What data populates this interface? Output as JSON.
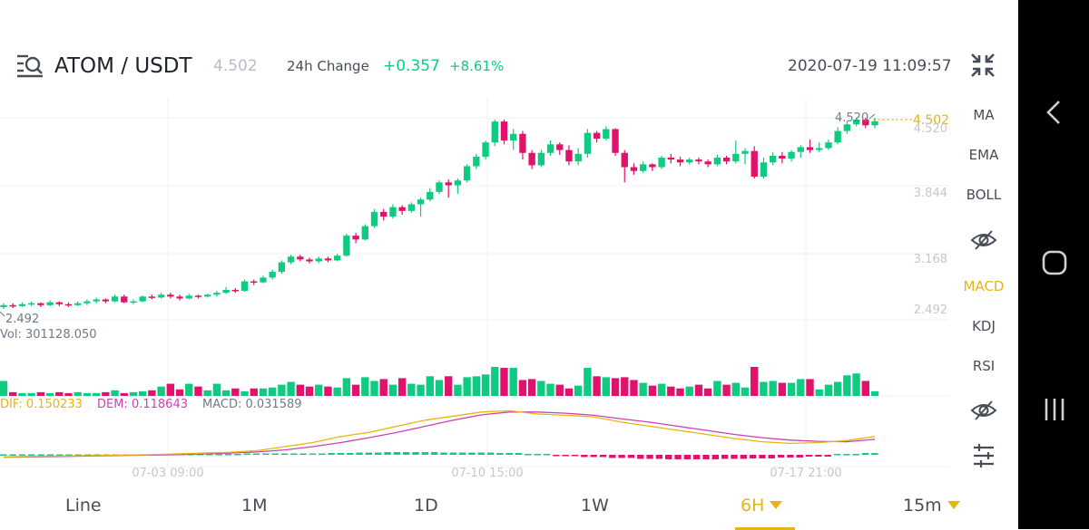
{
  "header": {
    "pair": "ATOM / USDT",
    "last_price": "4.502",
    "change_label": "24h Change",
    "change_abs": "+0.357",
    "change_pct": "+8.61%",
    "timestamp": "2020-07-19 11:09:57"
  },
  "colors": {
    "up": "#0ecb81",
    "down": "#e0126b",
    "accent": "#e6b511",
    "dif": "#e6b511",
    "dem": "#cf3fb2"
  },
  "price_panel": {
    "axis_labels": [
      "4.520",
      "3.844",
      "3.168",
      "2.492"
    ],
    "high_label": "4.520",
    "low_label": "2.492",
    "current_price_label": "4.502"
  },
  "volume_panel": {
    "label": "Vol: 301128.050"
  },
  "macd_panel": {
    "dif_label": "DIF: 0.150233",
    "dem_label": "DEM: 0.118643",
    "macd_label": "MACD: 0.031589"
  },
  "x_axis_labels": [
    "07-03 09:00",
    "07-10 15:00",
    "07-17 21:00"
  ],
  "sidebar": {
    "items": [
      "MA",
      "EMA",
      "BOLL",
      "MACD",
      "KDJ",
      "RSI"
    ],
    "active": "MACD"
  },
  "timeframes": [
    {
      "label": "Line",
      "active": false,
      "dropdown": false
    },
    {
      "label": "1M",
      "active": false,
      "dropdown": false
    },
    {
      "label": "1D",
      "active": false,
      "dropdown": false
    },
    {
      "label": "1W",
      "active": false,
      "dropdown": false
    },
    {
      "label": "6H",
      "active": true,
      "dropdown": true
    },
    {
      "label": "15m",
      "active": false,
      "dropdown": true
    }
  ],
  "icons": {
    "pair_icon": "list-search-icon",
    "collapse_icon": "collapse-arrows-icon",
    "main_eye_icon": "eye-slash-icon",
    "sub_eye_icon": "eye-slash-icon",
    "settings_icon": "sliders-icon",
    "nav_back": "chevron-left-icon",
    "nav_home": "home-icon",
    "nav_recents": "recents-icon"
  },
  "chart_data": {
    "type": "candlestick",
    "interval": "6H",
    "x_labels": [
      "07-03 09:00",
      "07-10 15:00",
      "07-17 21:00"
    ],
    "price_ylim": [
      2.4,
      4.6
    ],
    "price_ticks": [
      4.52,
      3.844,
      3.168,
      2.492
    ],
    "candles": [
      [
        2.55,
        2.57,
        2.53,
        2.59
      ],
      [
        2.57,
        2.56,
        2.54,
        2.59
      ],
      [
        2.56,
        2.58,
        2.55,
        2.6
      ],
      [
        2.58,
        2.59,
        2.56,
        2.61
      ],
      [
        2.59,
        2.57,
        2.55,
        2.6
      ],
      [
        2.57,
        2.6,
        2.56,
        2.62
      ],
      [
        2.6,
        2.58,
        2.56,
        2.61
      ],
      [
        2.58,
        2.57,
        2.55,
        2.6
      ],
      [
        2.57,
        2.59,
        2.56,
        2.61
      ],
      [
        2.59,
        2.61,
        2.57,
        2.63
      ],
      [
        2.61,
        2.63,
        2.59,
        2.65
      ],
      [
        2.63,
        2.61,
        2.59,
        2.64
      ],
      [
        2.61,
        2.66,
        2.6,
        2.68
      ],
      [
        2.66,
        2.6,
        2.59,
        2.68
      ],
      [
        2.6,
        2.61,
        2.58,
        2.63
      ],
      [
        2.61,
        2.66,
        2.6,
        2.67
      ],
      [
        2.66,
        2.65,
        2.63,
        2.68
      ],
      [
        2.65,
        2.68,
        2.64,
        2.7
      ],
      [
        2.68,
        2.66,
        2.64,
        2.7
      ],
      [
        2.66,
        2.64,
        2.62,
        2.68
      ],
      [
        2.64,
        2.67,
        2.63,
        2.69
      ],
      [
        2.67,
        2.66,
        2.64,
        2.68
      ],
      [
        2.66,
        2.68,
        2.65,
        2.69
      ],
      [
        2.68,
        2.7,
        2.66,
        2.72
      ],
      [
        2.7,
        2.73,
        2.69,
        2.76
      ],
      [
        2.73,
        2.72,
        2.7,
        2.75
      ],
      [
        2.72,
        2.82,
        2.71,
        2.84
      ],
      [
        2.82,
        2.81,
        2.78,
        2.84
      ],
      [
        2.81,
        2.86,
        2.8,
        2.88
      ],
      [
        2.86,
        2.92,
        2.84,
        2.94
      ],
      [
        2.92,
        3.02,
        2.9,
        3.04
      ],
      [
        3.02,
        3.08,
        3.0,
        3.1
      ],
      [
        3.08,
        3.05,
        3.03,
        3.1
      ],
      [
        3.05,
        3.03,
        3.01,
        3.07
      ],
      [
        3.03,
        3.06,
        3.01,
        3.08
      ],
      [
        3.06,
        3.04,
        3.02,
        3.08
      ],
      [
        3.04,
        3.09,
        3.03,
        3.11
      ],
      [
        3.09,
        3.3,
        3.08,
        3.32
      ],
      [
        3.3,
        3.26,
        3.22,
        3.33
      ],
      [
        3.26,
        3.4,
        3.25,
        3.42
      ],
      [
        3.4,
        3.55,
        3.38,
        3.58
      ],
      [
        3.55,
        3.5,
        3.46,
        3.58
      ],
      [
        3.5,
        3.6,
        3.48,
        3.63
      ],
      [
        3.6,
        3.56,
        3.52,
        3.62
      ],
      [
        3.56,
        3.63,
        3.54,
        3.65
      ],
      [
        3.63,
        3.68,
        3.5,
        3.7
      ],
      [
        3.68,
        3.76,
        3.66,
        3.8
      ],
      [
        3.76,
        3.86,
        3.74,
        3.88
      ],
      [
        3.86,
        3.83,
        3.7,
        3.89
      ],
      [
        3.83,
        3.88,
        3.74,
        3.9
      ],
      [
        3.88,
        4.03,
        3.86,
        4.05
      ],
      [
        4.03,
        4.13,
        4.0,
        4.16
      ],
      [
        4.13,
        4.28,
        4.1,
        4.3
      ],
      [
        4.28,
        4.5,
        4.24,
        4.52
      ],
      [
        4.5,
        4.3,
        4.26,
        4.52
      ],
      [
        4.3,
        4.37,
        4.2,
        4.42
      ],
      [
        4.37,
        4.17,
        4.1,
        4.4
      ],
      [
        4.17,
        4.04,
        4.0,
        4.2
      ],
      [
        4.04,
        4.17,
        4.02,
        4.2
      ],
      [
        4.17,
        4.26,
        4.14,
        4.3
      ],
      [
        4.26,
        4.2,
        4.15,
        4.28
      ],
      [
        4.2,
        4.08,
        4.04,
        4.25
      ],
      [
        4.08,
        4.16,
        4.04,
        4.22
      ],
      [
        4.16,
        4.38,
        4.12,
        4.42
      ],
      [
        4.38,
        4.32,
        4.28,
        4.4
      ],
      [
        4.32,
        4.42,
        4.3,
        4.45
      ],
      [
        4.42,
        4.17,
        4.14,
        4.43
      ],
      [
        4.17,
        4.02,
        3.86,
        4.2
      ],
      [
        4.02,
        3.98,
        3.94,
        4.06
      ],
      [
        3.98,
        4.05,
        3.96,
        4.08
      ],
      [
        4.05,
        4.02,
        3.98,
        4.06
      ],
      [
        4.02,
        4.12,
        4.0,
        4.14
      ],
      [
        4.12,
        4.1,
        4.06,
        4.16
      ],
      [
        4.1,
        4.07,
        4.03,
        4.13
      ],
      [
        4.07,
        4.1,
        4.05,
        4.12
      ],
      [
        4.1,
        4.08,
        4.05,
        4.12
      ],
      [
        4.08,
        4.05,
        4.02,
        4.1
      ],
      [
        4.05,
        4.12,
        4.03,
        4.15
      ],
      [
        4.12,
        4.08,
        4.05,
        4.14
      ],
      [
        4.08,
        4.16,
        4.06,
        4.3
      ],
      [
        4.16,
        4.19,
        4.05,
        4.22
      ],
      [
        4.19,
        3.92,
        3.9,
        4.24
      ],
      [
        3.92,
        4.07,
        3.9,
        4.12
      ],
      [
        4.07,
        4.14,
        4.04,
        4.18
      ],
      [
        4.14,
        4.11,
        4.06,
        4.18
      ],
      [
        4.11,
        4.18,
        4.08,
        4.2
      ],
      [
        4.18,
        4.23,
        4.12,
        4.25
      ],
      [
        4.23,
        4.2,
        4.17,
        4.31
      ],
      [
        4.2,
        4.22,
        4.18,
        4.28
      ],
      [
        4.22,
        4.28,
        4.2,
        4.31
      ],
      [
        4.28,
        4.4,
        4.26,
        4.44
      ],
      [
        4.4,
        4.47,
        4.37,
        4.5
      ],
      [
        4.47,
        4.52,
        4.45,
        4.54
      ],
      [
        4.52,
        4.46,
        4.43,
        4.54
      ],
      [
        4.46,
        4.502,
        4.43,
        4.54
      ]
    ],
    "volume_note": "relative volume bars, 0-100 scale",
    "volume": [
      16,
      4,
      3,
      3,
      4,
      3,
      4,
      3,
      4,
      3,
      3,
      4,
      6,
      3,
      4,
      5,
      6,
      10,
      13,
      7,
      13,
      10,
      6,
      13,
      6,
      8,
      5,
      8,
      8,
      9,
      12,
      15,
      12,
      10,
      12,
      10,
      9,
      19,
      12,
      20,
      16,
      18,
      12,
      19,
      13,
      12,
      21,
      17,
      21,
      12,
      20,
      21,
      23,
      31,
      30,
      30,
      17,
      18,
      16,
      13,
      12,
      8,
      11,
      30,
      21,
      20,
      19,
      20,
      17,
      14,
      11,
      13,
      10,
      8,
      10,
      12,
      8,
      16,
      12,
      14,
      9,
      31,
      15,
      16,
      14,
      14,
      18,
      18,
      7,
      12,
      15,
      22,
      24,
      16,
      5
    ],
    "macd": {
      "dif_series": [
        -0.05,
        -0.04,
        -0.03,
        -0.02,
        -0.01,
        0,
        0.02,
        0.04,
        0.06,
        0.1,
        0.2,
        0.3,
        0.45,
        0.55,
        0.7,
        0.85,
        0.95,
        1.05,
        1.08,
        1.0,
        0.97,
        0.93,
        0.8,
        0.7,
        0.6,
        0.5,
        0.4,
        0.32,
        0.28,
        0.3,
        0.35,
        0.45
      ],
      "dem_series": [
        -0.06,
        -0.05,
        -0.04,
        -0.03,
        -0.02,
        -0.01,
        0,
        0.02,
        0.04,
        0.07,
        0.12,
        0.2,
        0.3,
        0.42,
        0.55,
        0.7,
        0.85,
        0.98,
        1.05,
        1.05,
        1.02,
        0.97,
        0.88,
        0.8,
        0.7,
        0.6,
        0.5,
        0.42,
        0.36,
        0.33,
        0.32,
        0.38
      ],
      "hist_note": "relative histogram values, same units as dif/dem",
      "hist": [
        0.01,
        0.01,
        0.01,
        0.01,
        0.01,
        0.01,
        0.02,
        0.02,
        0.02,
        0.03,
        0.03,
        0.03,
        0.04,
        0.05,
        0.06,
        0.06,
        0.05,
        0.05,
        0.04,
        0.02,
        -0.02,
        -0.05,
        -0.07,
        -0.09,
        -0.1,
        -0.1,
        -0.09,
        -0.08,
        -0.06,
        -0.04,
        0.02,
        0.04
      ]
    }
  }
}
